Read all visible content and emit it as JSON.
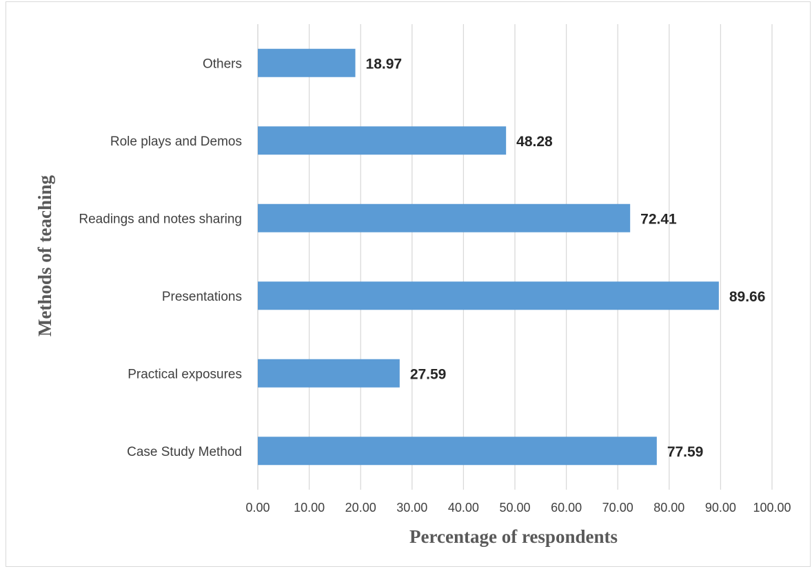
{
  "chart_data": {
    "type": "bar",
    "orientation": "horizontal",
    "categories": [
      "Case Study Method ",
      "Practical exposures",
      "Presentations",
      "Readings and notes sharing",
      "Role plays and Demos",
      "Others"
    ],
    "values": [
      77.59,
      27.59,
      89.66,
      72.41,
      48.28,
      18.97
    ],
    "value_labels": [
      "77.59",
      "27.59",
      "89.66",
      "72.41",
      "48.28",
      "18.97"
    ],
    "xlabel": "Percentage of respondents",
    "ylabel": "Methods of teaching",
    "xlim": [
      0,
      100
    ],
    "xticks": [
      "0.00",
      "10.00",
      "20.00",
      "30.00",
      "40.00",
      "50.00",
      "60.00",
      "70.00",
      "80.00",
      "90.00",
      "100.00"
    ],
    "grid": true,
    "legend": "none",
    "bar_color": "#5B9BD5",
    "grid_color": "#D9D9D9"
  }
}
